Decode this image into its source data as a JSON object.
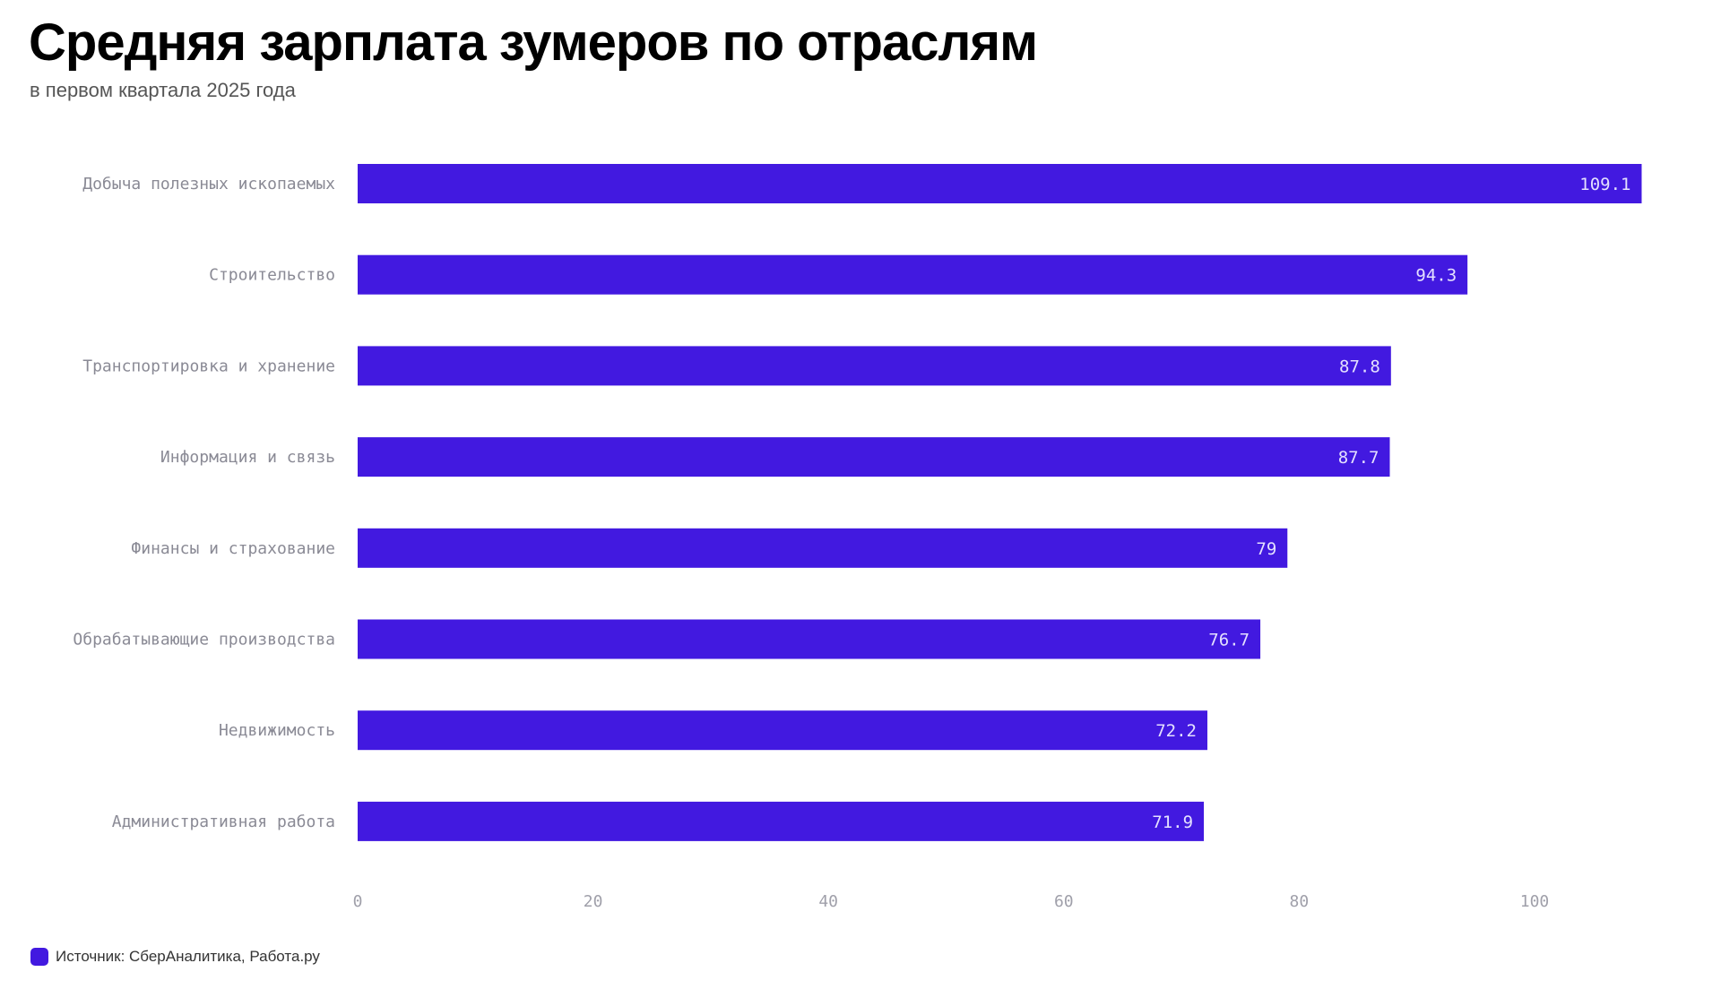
{
  "chart_data": {
    "type": "bar",
    "orientation": "horizontal",
    "title": "Средняя зарплата зумеров по отраслям",
    "subtitle": "в первом квартала 2025 года",
    "categories": [
      "Добыча полезных ископаемых",
      "Строительство",
      "Транспортировка и хранение",
      "Информация и связь",
      "Финансы и страхование",
      "Обрабатывающие производства",
      "Недвижимость",
      "Административная работа"
    ],
    "values": [
      109.1,
      94.3,
      87.8,
      87.7,
      79,
      76.7,
      72.2,
      71.9
    ],
    "value_labels": [
      "109.1",
      "94.3",
      "87.8",
      "87.7",
      "79",
      "76.7",
      "72.2",
      "71.9"
    ],
    "xticks": [
      0,
      20,
      40,
      60,
      80,
      100
    ],
    "xlim": [
      0,
      110
    ],
    "grid": false,
    "bar_color": "#4219e0",
    "legend": {
      "label": "Источник: СберАналитика, Работа.ру",
      "placement": "bottom-left"
    }
  }
}
